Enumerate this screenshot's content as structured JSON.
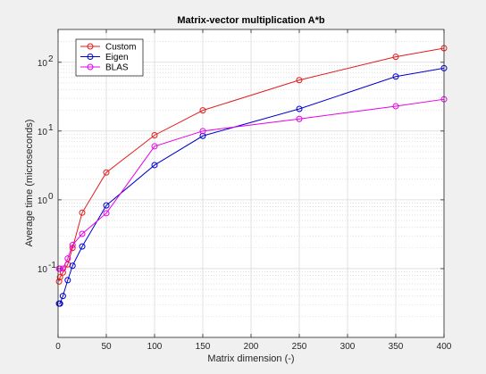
{
  "chart_data": {
    "type": "line",
    "title": "Matrix-vector multiplication A*b",
    "xlabel": "Matrix dimension (-)",
    "ylabel": "Average time (microseconds)",
    "xlim": [
      0,
      400
    ],
    "ylim": [
      0.01,
      300
    ],
    "yscale": "log",
    "grid": true,
    "minor_grid": true,
    "legend_location": "top-left",
    "xticks": [
      0,
      50,
      100,
      150,
      200,
      250,
      300,
      350,
      400
    ],
    "yticks": [
      {
        "value": 0.1,
        "base": "10",
        "exp": "-1"
      },
      {
        "value": 1,
        "base": "10",
        "exp": "0"
      },
      {
        "value": 10,
        "base": "10",
        "exp": "1"
      },
      {
        "value": 100,
        "base": "10",
        "exp": "2"
      }
    ],
    "series": [
      {
        "name": "Custom",
        "color": "#e41a1c",
        "x": [
          1,
          2,
          5,
          10,
          15,
          25,
          50,
          100,
          150,
          250,
          350,
          400
        ],
        "y": [
          0.065,
          0.075,
          0.088,
          0.115,
          0.2,
          0.65,
          2.5,
          8.7,
          20,
          55,
          120,
          160
        ]
      },
      {
        "name": "Eigen",
        "color": "#0000d0",
        "x": [
          1,
          2,
          5,
          10,
          15,
          25,
          50,
          100,
          150,
          250,
          350,
          400
        ],
        "y": [
          0.031,
          0.031,
          0.04,
          0.068,
          0.11,
          0.21,
          0.83,
          3.2,
          8.5,
          21,
          62,
          82
        ]
      },
      {
        "name": "BLAS",
        "color": "#e600e6",
        "x": [
          1,
          2,
          5,
          10,
          15,
          25,
          50,
          100,
          150,
          250,
          350,
          400
        ],
        "y": [
          0.1,
          0.1,
          0.1,
          0.14,
          0.22,
          0.32,
          0.64,
          6.0,
          10,
          15,
          23,
          29
        ]
      }
    ]
  }
}
